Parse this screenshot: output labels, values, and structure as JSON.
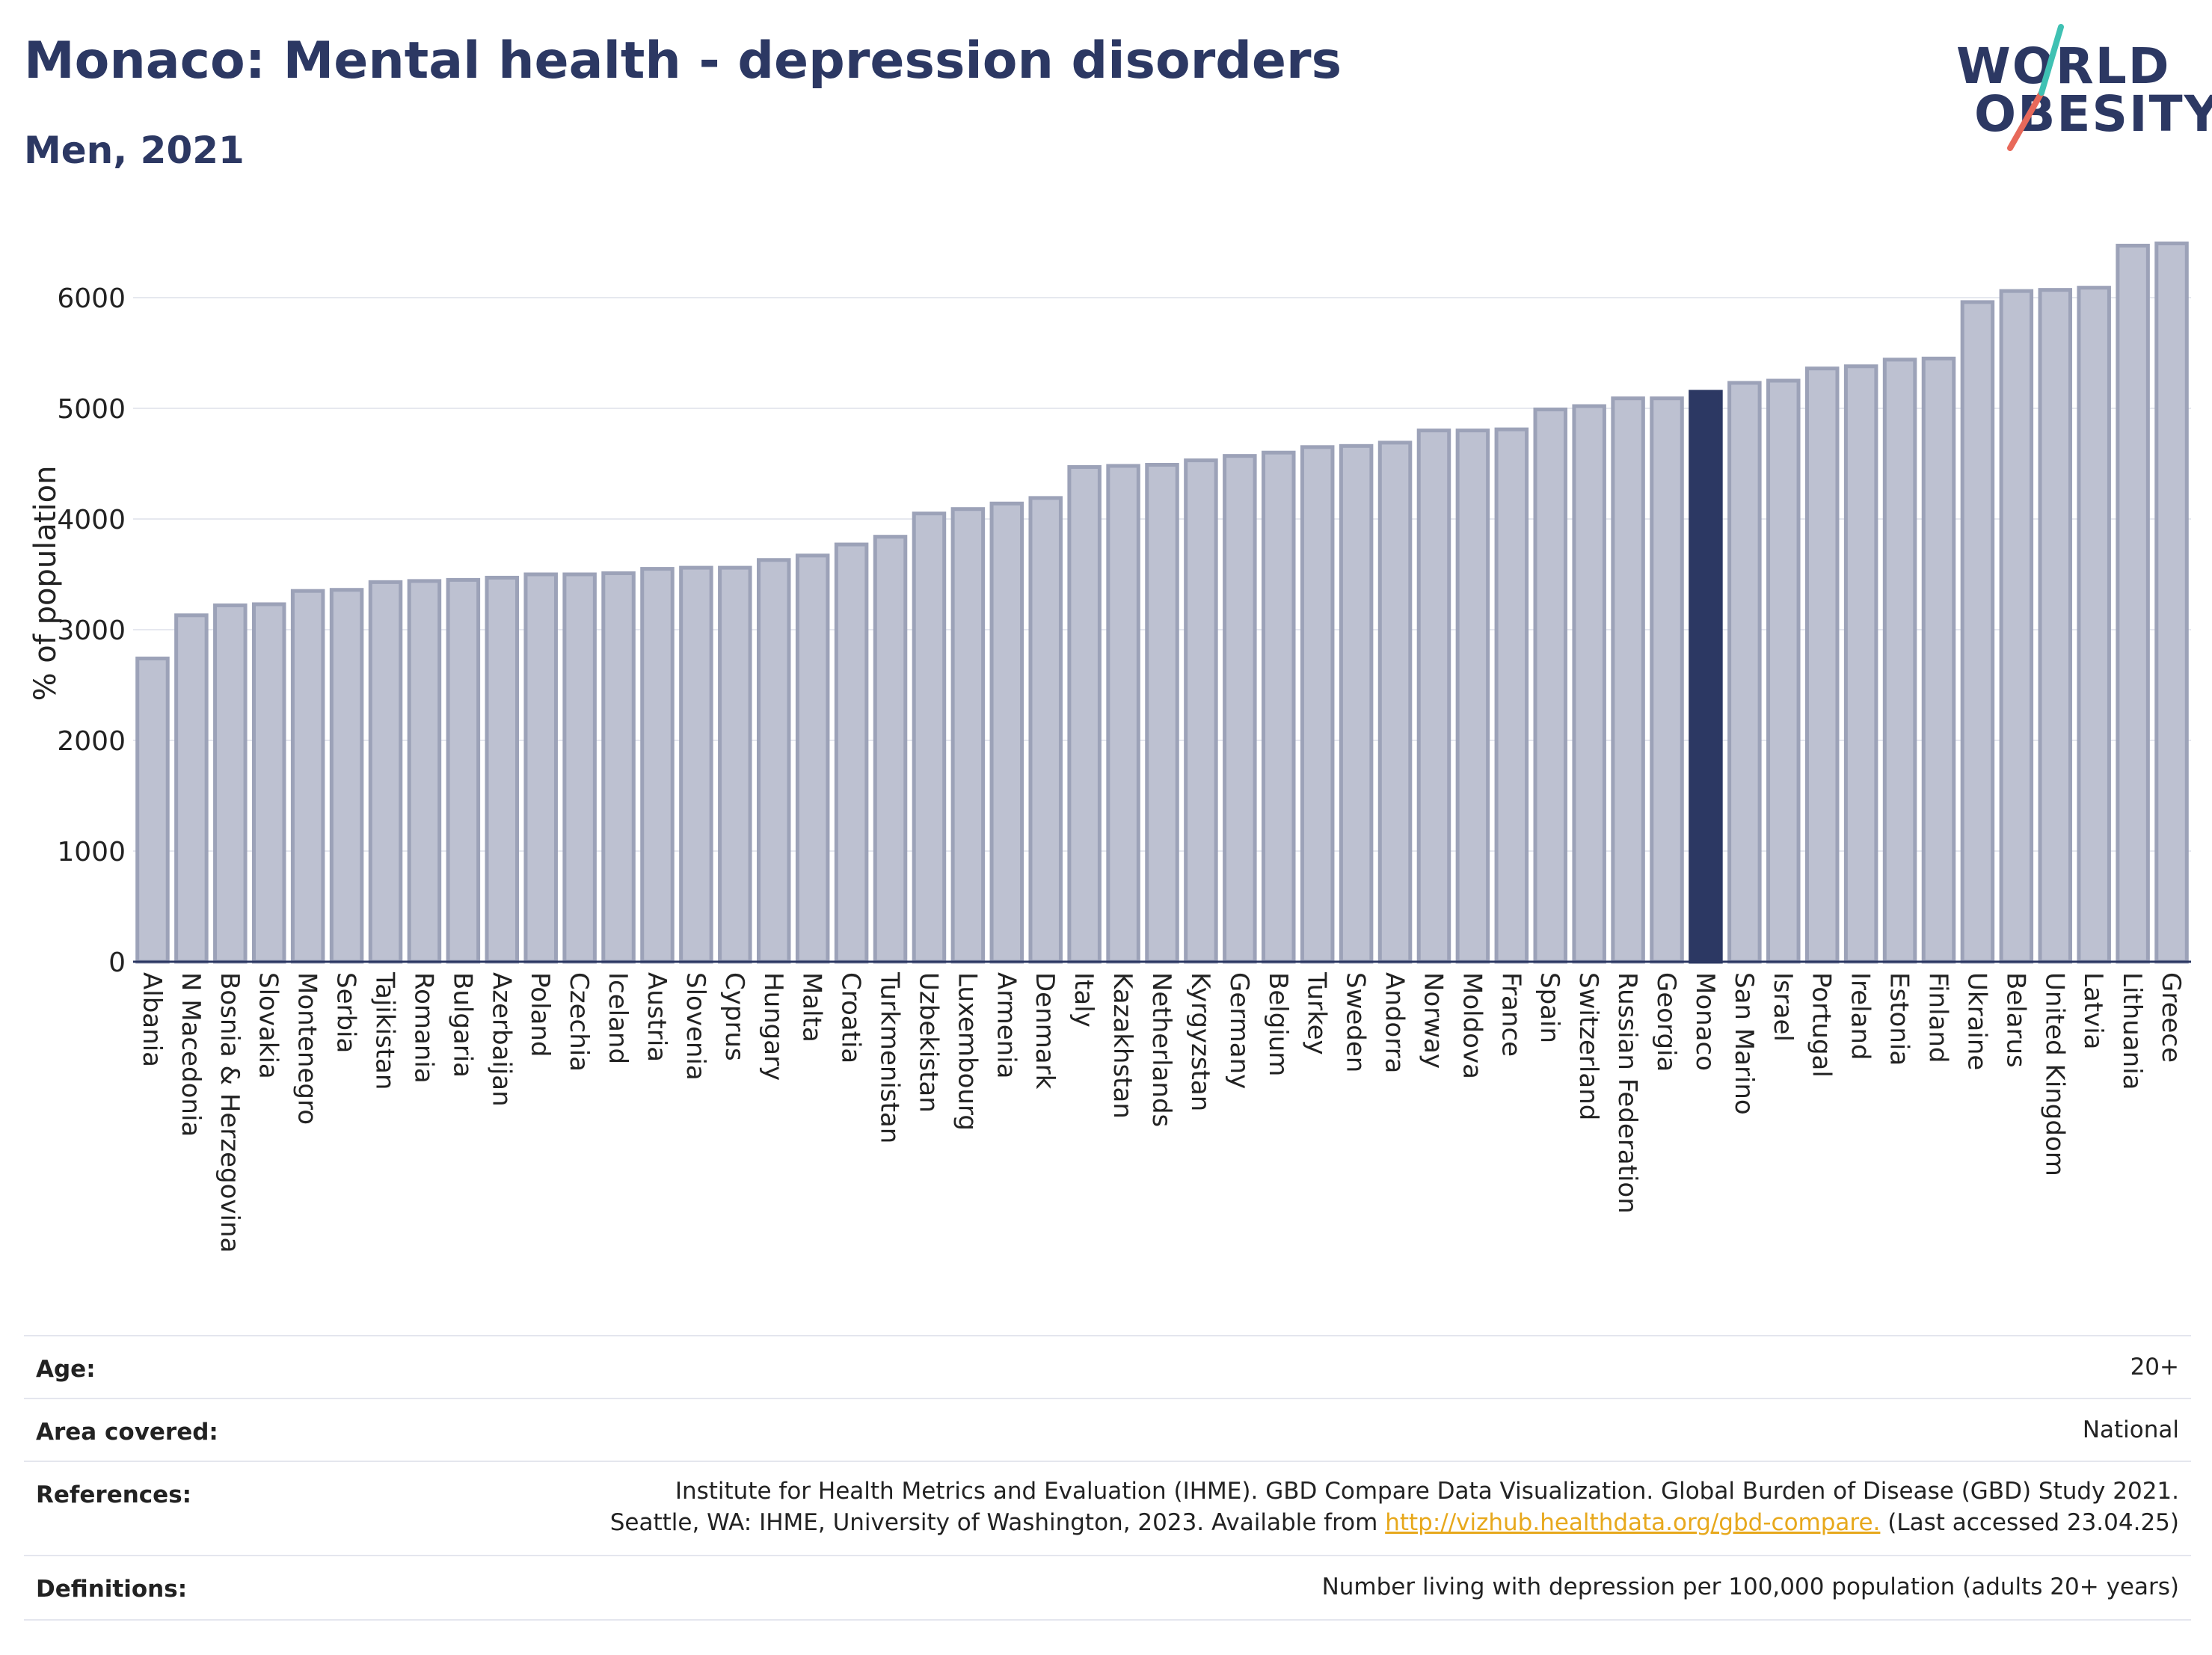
{
  "header": {
    "title": "Monaco: Mental health - depression disorders",
    "subtitle": "Men, 2021"
  },
  "logo": {
    "line1": "WORLD",
    "line2": "OBESITY",
    "accent_colors": [
      "#3fc1b3",
      "#e8695a"
    ]
  },
  "chart_data": {
    "type": "bar",
    "ylabel": "% of population",
    "xlabel": "",
    "ylim": [
      0,
      6600
    ],
    "yticks": [
      0,
      1000,
      2000,
      3000,
      4000,
      5000,
      6000
    ],
    "grid": true,
    "highlight": "Monaco",
    "colors": {
      "bar": "#bdc1d1",
      "bar_edge": "#9ca2b8",
      "highlight": "#2c3863"
    },
    "categories": [
      "Albania",
      "N Macedonia",
      "Bosnia & Herzegovina",
      "Slovakia",
      "Montenegro",
      "Serbia",
      "Tajikistan",
      "Romania",
      "Bulgaria",
      "Azerbaijan",
      "Poland",
      "Czechia",
      "Iceland",
      "Austria",
      "Slovenia",
      "Cyprus",
      "Hungary",
      "Malta",
      "Croatia",
      "Turkmenistan",
      "Uzbekistan",
      "Luxembourg",
      "Armenia",
      "Denmark",
      "Italy",
      "Kazakhstan",
      "Netherlands",
      "Kyrgyzstan",
      "Germany",
      "Belgium",
      "Turkey",
      "Sweden",
      "Andorra",
      "Norway",
      "Moldova",
      "France",
      "Spain",
      "Switzerland",
      "Russian Federation",
      "Georgia",
      "Monaco",
      "San Marino",
      "Israel",
      "Portugal",
      "Ireland",
      "Estonia",
      "Finland",
      "Ukraine",
      "Belarus",
      "United Kingdom",
      "Latvia",
      "Lithuania",
      "Greece"
    ],
    "values": [
      2740,
      3130,
      3220,
      3230,
      3350,
      3360,
      3430,
      3440,
      3450,
      3470,
      3500,
      3500,
      3510,
      3550,
      3560,
      3560,
      3630,
      3670,
      3770,
      3840,
      4050,
      4090,
      4140,
      4190,
      4470,
      4480,
      4490,
      4530,
      4570,
      4600,
      4650,
      4660,
      4690,
      4800,
      4800,
      4810,
      4990,
      5020,
      5090,
      5090,
      5150,
      5230,
      5250,
      5360,
      5380,
      5440,
      5450,
      5960,
      6060,
      6070,
      6090,
      6470,
      6490
    ]
  },
  "meta": {
    "age_label": "Age:",
    "age_value": "20+",
    "area_label": "Area covered:",
    "area_value": "National",
    "references_label": "References:",
    "references_line1": "Institute for Health Metrics and Evaluation (IHME). GBD Compare Data Visualization. Global Burden of Disease (GBD) Study 2021.",
    "references_line2_pre": "Seattle, WA: IHME, University of Washington, 2023. Available from ",
    "references_link": "http://vizhub.healthdata.org/gbd-compare.",
    "references_line2_post": " (Last accessed 23.04.25)",
    "definitions_label": "Definitions:",
    "definitions_value": "Number living with depression per 100,000 population (adults 20+ years)"
  }
}
